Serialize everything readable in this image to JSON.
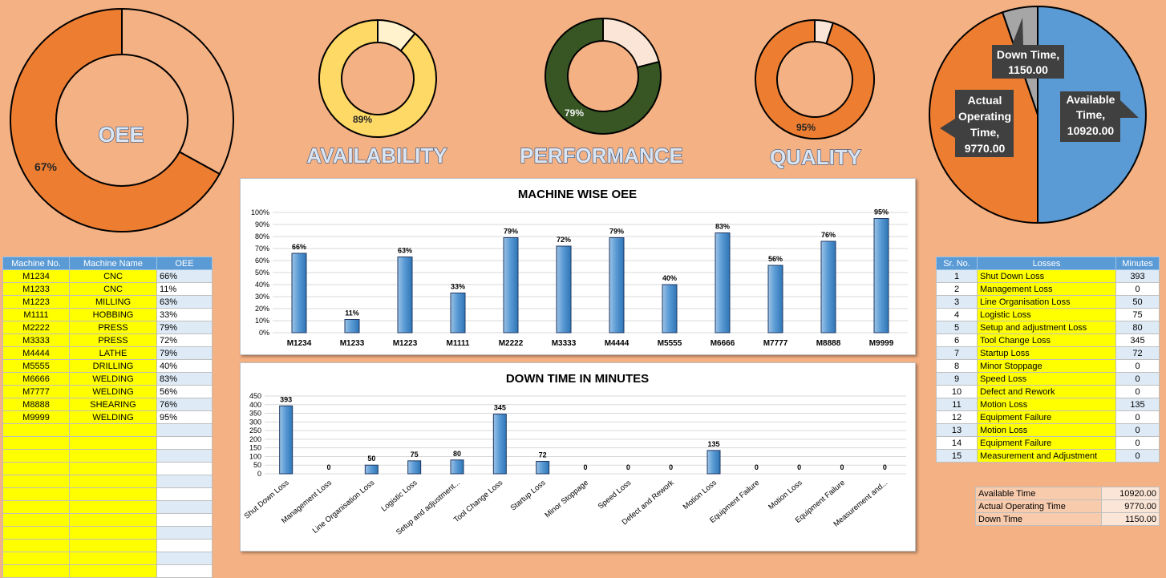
{
  "kpis": {
    "oee": {
      "label": "OEE",
      "value_label": "67%",
      "fraction": 0.67
    },
    "availability": {
      "label": "AVAILABILITY",
      "value_label": "89%",
      "fraction": 0.89
    },
    "performance": {
      "label": "PERFORMANCE",
      "value_label": "79%",
      "fraction": 0.79
    },
    "quality": {
      "label": "QUALITY",
      "value_label": "95%",
      "fraction": 0.95
    }
  },
  "colors": {
    "background": "#f4b183",
    "orange": "#ed7d31",
    "yellow": "#ffd966",
    "green": "#375623",
    "blue": "#5b9bd5",
    "gray": "#a6a6a6"
  },
  "machine_table": {
    "headers": [
      "Machine No.",
      "Machine Name",
      "OEE"
    ],
    "rows": [
      [
        "M1234",
        "CNC",
        "66%"
      ],
      [
        "M1233",
        "CNC",
        "11%"
      ],
      [
        "M1223",
        "MILLING",
        "63%"
      ],
      [
        "M1111",
        "HOBBING",
        "33%"
      ],
      [
        "M2222",
        "PRESS",
        "79%"
      ],
      [
        "M3333",
        "PRESS",
        "72%"
      ],
      [
        "M4444",
        "LATHE",
        "79%"
      ],
      [
        "M5555",
        "DRILLING",
        "40%"
      ],
      [
        "M6666",
        "WELDING",
        "83%"
      ],
      [
        "M7777",
        "WELDING",
        "56%"
      ],
      [
        "M8888",
        "SHEARING",
        "76%"
      ],
      [
        "M9999",
        "WELDING",
        "95%"
      ]
    ],
    "empty_rows": 12
  },
  "loss_table": {
    "headers": [
      "Sr. No.",
      "Losses",
      "Minutes"
    ],
    "rows": [
      [
        "1",
        "Shut Down Loss",
        "393"
      ],
      [
        "2",
        "Management Loss",
        "0"
      ],
      [
        "3",
        "Line Organisation Loss",
        "50"
      ],
      [
        "4",
        "Logistic Loss",
        "75"
      ],
      [
        "5",
        "Setup and adjustment Loss",
        "80"
      ],
      [
        "6",
        "Tool Change Loss",
        "345"
      ],
      [
        "7",
        "Startup Loss",
        "72"
      ],
      [
        "8",
        "Minor Stoppage",
        "0"
      ],
      [
        "9",
        "Speed Loss",
        "0"
      ],
      [
        "10",
        "Defect and Rework",
        "0"
      ],
      [
        "11",
        "Motion Loss",
        "135"
      ],
      [
        "12",
        "Equipment Failure",
        "0"
      ],
      [
        "13",
        "Motion Loss",
        "0"
      ],
      [
        "14",
        "Equipment Failure",
        "0"
      ],
      [
        "15",
        "Measurement and Adjustment",
        "0"
      ]
    ]
  },
  "time_table": {
    "rows": [
      [
        "Available Time",
        "10920.00"
      ],
      [
        "Actual Operating Time",
        "9770.00"
      ],
      [
        "Down Time",
        "1150.00"
      ]
    ]
  },
  "chart_data": [
    {
      "type": "bar",
      "title": "MACHINE WISE OEE",
      "categories": [
        "M1234",
        "M1233",
        "M1223",
        "M1111",
        "M2222",
        "M3333",
        "M4444",
        "M5555",
        "M6666",
        "M7777",
        "M8888",
        "M9999"
      ],
      "values": [
        66,
        11,
        63,
        33,
        79,
        72,
        79,
        40,
        83,
        56,
        76,
        95
      ],
      "data_labels": [
        "66%",
        "11%",
        "63%",
        "33%",
        "79%",
        "72%",
        "79%",
        "40%",
        "83%",
        "56%",
        "76%",
        "95%"
      ],
      "ylim": [
        0,
        100
      ],
      "yticks": [
        "0%",
        "10%",
        "20%",
        "30%",
        "40%",
        "50%",
        "60%",
        "70%",
        "80%",
        "90%",
        "100%"
      ],
      "grid": true
    },
    {
      "type": "bar",
      "title": "DOWN TIME IN MINUTES",
      "categories": [
        "Shut Down Loss",
        "Management Loss",
        "Line Organisation Loss",
        "Logistic Loss",
        "Setup and adjustment...",
        "Tool Change Loss",
        "Startup Loss",
        "Minor Stoppage",
        "Speed Loss",
        "Defect and Rework",
        "Motion Loss",
        "Equipment Failure",
        "Motion Loss",
        "Equipment Failure",
        "Measurement and..."
      ],
      "values": [
        393,
        0,
        50,
        75,
        80,
        345,
        72,
        0,
        0,
        0,
        135,
        0,
        0,
        0,
        0
      ],
      "ylim": [
        0,
        450
      ],
      "yticks": [
        "0",
        "50",
        "100",
        "150",
        "200",
        "250",
        "300",
        "350",
        "400",
        "450"
      ],
      "grid": true
    },
    {
      "type": "pie",
      "slices": [
        {
          "name": "Available Time",
          "label_lines": [
            "Available",
            "Time,",
            "10920.00"
          ],
          "value": 10920.0
        },
        {
          "name": "Actual Operating Time",
          "label_lines": [
            "Actual",
            "Operating",
            "Time,",
            "9770.00"
          ],
          "value": 9770.0
        },
        {
          "name": "Down Time",
          "label_lines": [
            "Down Time,",
            "1150.00"
          ],
          "value": 1150.0
        }
      ]
    }
  ]
}
